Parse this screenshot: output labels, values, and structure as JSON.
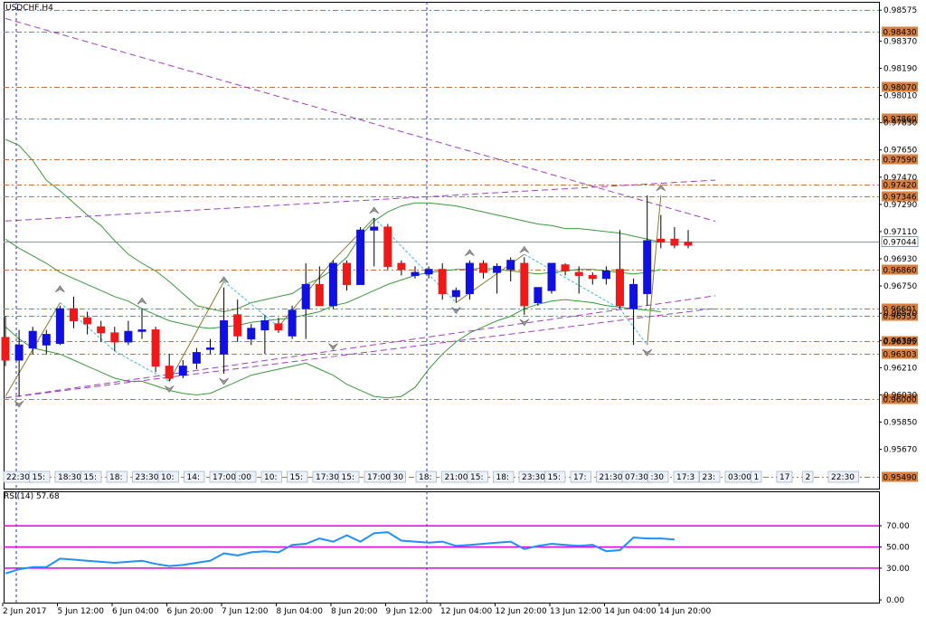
{
  "chart_data": [
    {
      "type": "candlestick",
      "title": "USDCHF,H4",
      "y_range": [
        0.9541,
        0.9863
      ],
      "price_ticks": [
        "0.98575",
        "0.98370",
        "0.98190",
        "0.98010",
        "0.97830",
        "0.97650",
        "0.97470",
        "0.97290",
        "0.97110",
        "0.96930",
        "0.96750",
        "0.96570",
        "0.96390",
        "0.96210",
        "0.96030",
        "0.95850",
        "0.95670"
      ],
      "time_labels": [
        "2 Jun 2017",
        "5 Jun 12:00",
        "6 Jun 04:00",
        "6 Jun 20:00",
        "7 Jun 12:00",
        "8 Jun 04:00",
        "8 Jun 20:00",
        "9 Jun 12:00",
        "12 Jun 04:00",
        "12 Jun 20:00",
        "13 Jun 12:00",
        "14 Jun 04:00",
        "14 Jun 20:00"
      ],
      "current_price": "0.97044",
      "levels": [
        {
          "label": "0.98575",
          "price": 0.98575,
          "boxed": false
        },
        {
          "label": "0.98430",
          "price": 0.9843,
          "boxed": true
        },
        {
          "label": "0.98070",
          "price": 0.9807,
          "boxed": true
        },
        {
          "label": "0.97860",
          "price": 0.9786,
          "boxed": true
        },
        {
          "label": "0.97590",
          "price": 0.9759,
          "boxed": true
        },
        {
          "label": "0.97420",
          "price": 0.9742,
          "boxed": true
        },
        {
          "label": "0.97346",
          "price": 0.97346,
          "boxed": true
        },
        {
          "label": "0.96860",
          "price": 0.9686,
          "boxed": true
        },
        {
          "label": "0.96601",
          "price": 0.96601,
          "boxed": true
        },
        {
          "label": "0.96555",
          "price": 0.96555,
          "boxed": true
        },
        {
          "label": "0.96385",
          "price": 0.96385,
          "boxed": true
        },
        {
          "label": "0.96303",
          "price": 0.96303,
          "boxed": true
        },
        {
          "label": "0.96000",
          "price": 0.96,
          "boxed": true
        },
        {
          "label": "0.95490",
          "price": 0.9549,
          "boxed": true
        }
      ],
      "candles": [
        {
          "o": 0.9641,
          "h": 0.9655,
          "l": 0.9622,
          "c": 0.9626
        },
        {
          "o": 0.9626,
          "h": 0.9646,
          "l": 0.9602,
          "c": 0.9636
        },
        {
          "o": 0.9634,
          "h": 0.9648,
          "l": 0.963,
          "c": 0.9645
        },
        {
          "o": 0.9636,
          "h": 0.9646,
          "l": 0.963,
          "c": 0.9643
        },
        {
          "o": 0.9637,
          "h": 0.9662,
          "l": 0.9636,
          "c": 0.966
        },
        {
          "o": 0.966,
          "h": 0.9668,
          "l": 0.9647,
          "c": 0.9652
        },
        {
          "o": 0.9654,
          "h": 0.9658,
          "l": 0.9643,
          "c": 0.965
        },
        {
          "o": 0.9648,
          "h": 0.9652,
          "l": 0.9638,
          "c": 0.9644
        },
        {
          "o": 0.9644,
          "h": 0.9648,
          "l": 0.9632,
          "c": 0.9638
        },
        {
          "o": 0.9638,
          "h": 0.9652,
          "l": 0.9636,
          "c": 0.9645
        },
        {
          "o": 0.9645,
          "h": 0.966,
          "l": 0.964,
          "c": 0.9646
        },
        {
          "o": 0.9646,
          "h": 0.9648,
          "l": 0.9618,
          "c": 0.9622
        },
        {
          "o": 0.9622,
          "h": 0.963,
          "l": 0.9612,
          "c": 0.9614
        },
        {
          "o": 0.9616,
          "h": 0.9626,
          "l": 0.9614,
          "c": 0.9622
        },
        {
          "o": 0.9624,
          "h": 0.9634,
          "l": 0.962,
          "c": 0.9631
        },
        {
          "o": 0.9634,
          "h": 0.964,
          "l": 0.963,
          "c": 0.9634
        },
        {
          "o": 0.963,
          "h": 0.9674,
          "l": 0.9617,
          "c": 0.9652
        },
        {
          "o": 0.9656,
          "h": 0.9666,
          "l": 0.9638,
          "c": 0.9642
        },
        {
          "o": 0.964,
          "h": 0.965,
          "l": 0.9636,
          "c": 0.9647
        },
        {
          "o": 0.9646,
          "h": 0.9656,
          "l": 0.963,
          "c": 0.9652
        },
        {
          "o": 0.965,
          "h": 0.9654,
          "l": 0.9644,
          "c": 0.9646
        },
        {
          "o": 0.9642,
          "h": 0.9662,
          "l": 0.964,
          "c": 0.9659
        },
        {
          "o": 0.966,
          "h": 0.969,
          "l": 0.964,
          "c": 0.9676
        },
        {
          "o": 0.9676,
          "h": 0.9688,
          "l": 0.9662,
          "c": 0.9662
        },
        {
          "o": 0.9662,
          "h": 0.9692,
          "l": 0.966,
          "c": 0.969
        },
        {
          "o": 0.969,
          "h": 0.9692,
          "l": 0.9672,
          "c": 0.9676
        },
        {
          "o": 0.9676,
          "h": 0.9714,
          "l": 0.9676,
          "c": 0.9712
        },
        {
          "o": 0.9712,
          "h": 0.972,
          "l": 0.9688,
          "c": 0.9714
        },
        {
          "o": 0.9714,
          "h": 0.9716,
          "l": 0.9686,
          "c": 0.9688
        },
        {
          "o": 0.969,
          "h": 0.9692,
          "l": 0.9682,
          "c": 0.9686
        },
        {
          "o": 0.9682,
          "h": 0.9688,
          "l": 0.968,
          "c": 0.9684
        },
        {
          "o": 0.9683,
          "h": 0.9688,
          "l": 0.968,
          "c": 0.9686
        },
        {
          "o": 0.9686,
          "h": 0.969,
          "l": 0.9666,
          "c": 0.967
        },
        {
          "o": 0.9668,
          "h": 0.9674,
          "l": 0.9664,
          "c": 0.9672
        },
        {
          "o": 0.967,
          "h": 0.9692,
          "l": 0.9666,
          "c": 0.969
        },
        {
          "o": 0.969,
          "h": 0.9692,
          "l": 0.968,
          "c": 0.9684
        },
        {
          "o": 0.9684,
          "h": 0.969,
          "l": 0.967,
          "c": 0.9688
        },
        {
          "o": 0.9686,
          "h": 0.9694,
          "l": 0.9678,
          "c": 0.9692
        },
        {
          "o": 0.969,
          "h": 0.9694,
          "l": 0.9656,
          "c": 0.9662
        },
        {
          "o": 0.9664,
          "h": 0.9674,
          "l": 0.9662,
          "c": 0.9674
        },
        {
          "o": 0.9672,
          "h": 0.969,
          "l": 0.967,
          "c": 0.969
        },
        {
          "o": 0.9689,
          "h": 0.969,
          "l": 0.9682,
          "c": 0.9685
        },
        {
          "o": 0.9684,
          "h": 0.9688,
          "l": 0.967,
          "c": 0.9682
        },
        {
          "o": 0.9682,
          "h": 0.9684,
          "l": 0.9676,
          "c": 0.968
        },
        {
          "o": 0.968,
          "h": 0.9688,
          "l": 0.9676,
          "c": 0.9685
        },
        {
          "o": 0.9686,
          "h": 0.9712,
          "l": 0.966,
          "c": 0.9662
        },
        {
          "o": 0.966,
          "h": 0.968,
          "l": 0.9636,
          "c": 0.9676
        },
        {
          "o": 0.967,
          "h": 0.9735,
          "l": 0.9662,
          "c": 0.9705
        },
        {
          "o": 0.9706,
          "h": 0.9722,
          "l": 0.97,
          "c": 0.9704
        },
        {
          "o": 0.9706,
          "h": 0.9714,
          "l": 0.97,
          "c": 0.9702
        },
        {
          "o": 0.9704,
          "h": 0.9712,
          "l": 0.97,
          "c": 0.9702
        }
      ],
      "bands": {
        "upper": [
          0.9772,
          0.9768,
          0.9758,
          0.9745,
          0.9738,
          0.973,
          0.9722,
          0.9715,
          0.9705,
          0.9696,
          0.969,
          0.9685,
          0.9678,
          0.967,
          0.9662,
          0.966,
          0.9658,
          0.966,
          0.9664,
          0.9666,
          0.9668,
          0.967,
          0.9676,
          0.968,
          0.9686,
          0.9694,
          0.9708,
          0.9718,
          0.9724,
          0.9728,
          0.973,
          0.973,
          0.9729,
          0.9728,
          0.9726,
          0.9724,
          0.9722,
          0.972,
          0.9718,
          0.9716,
          0.9715,
          0.9713,
          0.9713,
          0.9712,
          0.9711,
          0.971,
          0.9708,
          0.9706,
          0.9704
        ],
        "middle": [
          0.9706,
          0.97,
          0.9695,
          0.969,
          0.9684,
          0.968,
          0.9676,
          0.9672,
          0.9668,
          0.9665,
          0.966,
          0.9656,
          0.9652,
          0.965,
          0.9648,
          0.9647,
          0.9648,
          0.9649,
          0.9651,
          0.9652,
          0.9653,
          0.9654,
          0.9656,
          0.9658,
          0.9662,
          0.9664,
          0.9668,
          0.9672,
          0.9676,
          0.9679,
          0.9682,
          0.9684,
          0.9685,
          0.9686,
          0.9686,
          0.9687,
          0.9686,
          0.9685,
          0.9684,
          0.9683,
          0.9684,
          0.9685,
          0.9686,
          0.9686,
          0.9685,
          0.9684,
          0.9683,
          0.9684,
          0.9686
        ],
        "lower": [
          0.9648,
          0.964,
          0.9634,
          0.9632,
          0.963,
          0.9626,
          0.9622,
          0.9618,
          0.9614,
          0.9612,
          0.9612,
          0.9609,
          0.9606,
          0.9604,
          0.9603,
          0.9604,
          0.9608,
          0.9612,
          0.9616,
          0.9618,
          0.962,
          0.9622,
          0.9624,
          0.962,
          0.9616,
          0.961,
          0.9606,
          0.9602,
          0.9601,
          0.9602,
          0.9608,
          0.962,
          0.963,
          0.9638,
          0.9644,
          0.9648,
          0.9652,
          0.9655,
          0.966,
          0.9663,
          0.9665,
          0.9666,
          0.9665,
          0.9664,
          0.9662,
          0.9661,
          0.966,
          0.9659,
          0.9658
        ]
      },
      "trend_lines": [
        {
          "from": [
            0,
            0.9852
          ],
          "to": [
            50,
            0.9723
          ],
          "color": "#a040c0"
        },
        {
          "from": [
            0,
            0.9718
          ],
          "to": [
            50,
            0.9744
          ],
          "color": "#a040c0"
        },
        {
          "from": [
            0,
            0.9601
          ],
          "to": [
            50,
            0.9666
          ],
          "color": "#a040c0"
        },
        {
          "from": [
            0,
            0.9601
          ],
          "to": [
            50,
            0.9658
          ],
          "color": "#a040c0"
        }
      ],
      "zigzag": [
        [
          0,
          0.9602
        ],
        [
          4,
          0.9664
        ],
        [
          8,
          0.9632
        ],
        [
          12,
          0.9612
        ],
        [
          16,
          0.9678
        ],
        [
          20,
          0.9648
        ],
        [
          24,
          0.9692
        ],
        [
          27,
          0.972
        ],
        [
          33,
          0.9664
        ],
        [
          38,
          0.9696
        ],
        [
          45,
          0.966
        ],
        [
          47,
          0.9636
        ],
        [
          48,
          0.9735
        ]
      ],
      "fractal_up": [
        [
          4,
          0.9668
        ],
        [
          10,
          0.966
        ],
        [
          16,
          0.9674
        ],
        [
          27,
          0.972
        ],
        [
          34,
          0.9692
        ],
        [
          38,
          0.9694
        ],
        [
          48,
          0.9735
        ]
      ],
      "fractal_down": [
        [
          1,
          0.9602
        ],
        [
          12,
          0.9612
        ],
        [
          16,
          0.9617
        ],
        [
          24,
          0.964
        ],
        [
          33,
          0.9664
        ],
        [
          38,
          0.9656
        ],
        [
          47,
          0.9636
        ]
      ],
      "top_tick_labels": [
        "22:30",
        "15:",
        "18:30",
        "15:",
        "18:",
        "23:30",
        "10:",
        "14:",
        "17:00",
        ":00",
        "10:",
        "15:",
        "17:30",
        "15:",
        "17:00",
        "30",
        "18:",
        "21:00",
        "15:",
        "18:",
        "23:30",
        "15:",
        "17:",
        "21:30",
        "07:30",
        ":30",
        "17:3",
        "23:",
        "03:00",
        "1",
        "17",
        "2",
        "22:30"
      ]
    },
    {
      "type": "line",
      "title": "RSI(14) 57.68",
      "y_range": [
        0,
        100
      ],
      "y_ticks": [
        "70.00",
        "50.00",
        "30.00",
        "0.00"
      ],
      "levels": [
        70,
        50,
        30
      ],
      "values": [
        25,
        29,
        31,
        31,
        39,
        38,
        37,
        36,
        35,
        36,
        37,
        34,
        32,
        33,
        35,
        37,
        44,
        42,
        45,
        46,
        45,
        52,
        53,
        58,
        55,
        61,
        55,
        63,
        64,
        56,
        55,
        54,
        55,
        51,
        52,
        53,
        54,
        55,
        48,
        51,
        53,
        52,
        51,
        52,
        46,
        47,
        59,
        58,
        58,
        57
      ]
    }
  ]
}
